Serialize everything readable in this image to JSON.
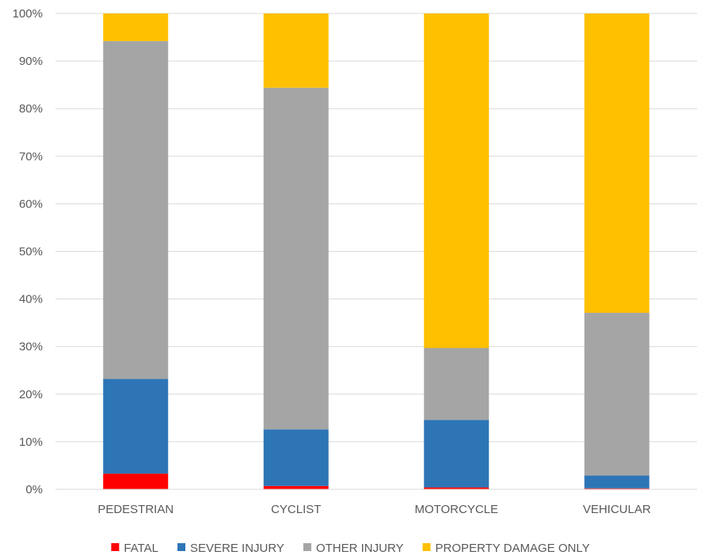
{
  "chart_data": {
    "type": "bar",
    "stacked": true,
    "percent_axis": true,
    "title": "",
    "xlabel": "",
    "ylabel": "",
    "categories": [
      "PEDESTRIAN",
      "CYCLIST",
      "MOTORCYCLE",
      "VEHICULAR"
    ],
    "series": [
      {
        "name": "FATAL",
        "color": "#ff0000",
        "values": [
          3.3,
          0.7,
          0.4,
          0.2
        ]
      },
      {
        "name": "SEVERE INJURY",
        "color": "#2e75b6",
        "values": [
          19.9,
          11.9,
          14.2,
          2.7
        ]
      },
      {
        "name": "OTHER INJURY",
        "color": "#a5a5a5",
        "values": [
          71.0,
          71.8,
          15.1,
          34.2
        ]
      },
      {
        "name": "PROPERTY DAMAGE ONLY",
        "color": "#ffc000",
        "values": [
          5.8,
          15.6,
          70.3,
          62.9
        ]
      }
    ],
    "ylim": [
      0,
      100
    ],
    "yticks": [
      "0%",
      "10%",
      "20%",
      "30%",
      "40%",
      "50%",
      "60%",
      "70%",
      "80%",
      "90%",
      "100%"
    ],
    "grid": true,
    "legend_position": "bottom"
  }
}
